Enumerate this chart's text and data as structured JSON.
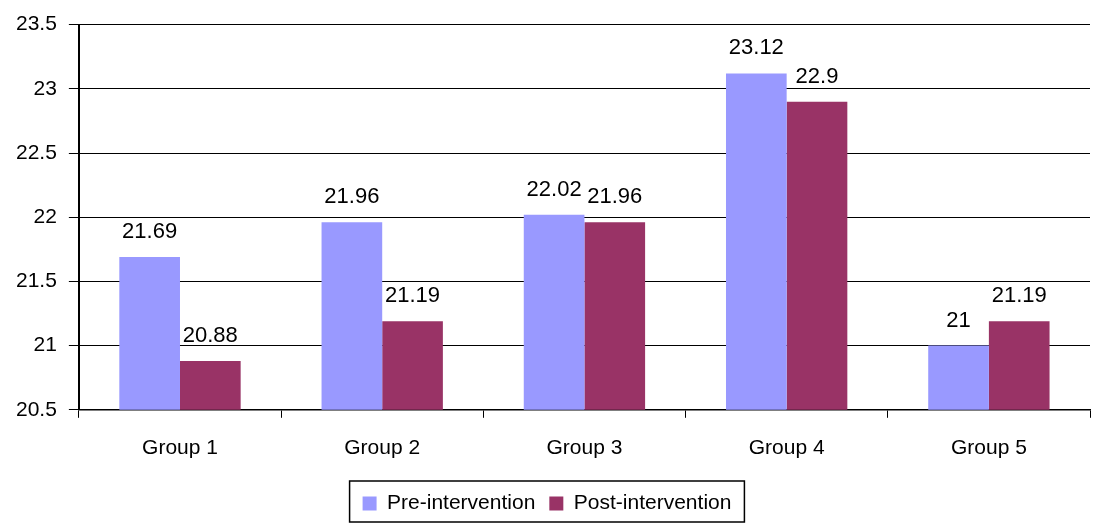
{
  "chart_data": {
    "type": "bar",
    "categories": [
      "Group 1",
      "Group 2",
      "Group 3",
      "Group 4",
      "Group 5"
    ],
    "series": [
      {
        "name": "Pre-intervention",
        "color": "#9999ff",
        "values": [
          21.69,
          21.96,
          22.02,
          23.12,
          21
        ]
      },
      {
        "name": "Post-intervention",
        "color": "#993366",
        "values": [
          20.88,
          21.19,
          21.96,
          22.9,
          21.19
        ]
      }
    ],
    "ylim": [
      20.5,
      23.5
    ],
    "yticks": [
      20.5,
      21,
      21.5,
      22,
      22.5,
      23,
      23.5
    ],
    "grid": "y",
    "legend": "bottom",
    "data_labels": true
  }
}
